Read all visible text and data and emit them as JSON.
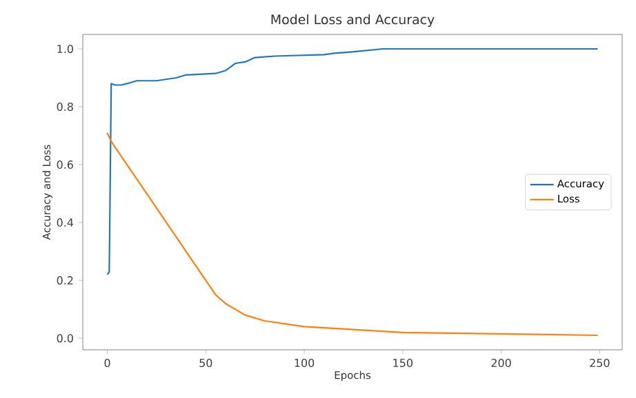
{
  "chart_data": {
    "type": "line",
    "title": "Model Loss and Accuracy",
    "xlabel": "Epochs",
    "ylabel": "Accuracy and Loss",
    "xlim": [
      -12.45,
      261.45
    ],
    "ylim": [
      -0.04,
      1.05
    ],
    "xticks": [
      0,
      50,
      100,
      150,
      200,
      250
    ],
    "yticks": [
      {
        "value": 0,
        "label": "0.0"
      },
      {
        "value": 0.2,
        "label": "0.2"
      },
      {
        "value": 0.4,
        "label": "0.4"
      },
      {
        "value": 0.6,
        "label": "0.6"
      },
      {
        "value": 0.8,
        "label": "0.8"
      },
      {
        "value": 1.0,
        "label": "1.0"
      }
    ],
    "legend": "right",
    "grid": false,
    "marker": "none",
    "line_style": "solid",
    "series": [
      {
        "name": "Accuracy",
        "color": "#1f77b4",
        "x": [
          0,
          1,
          2,
          4,
          7,
          10,
          15,
          25,
          35,
          40,
          55,
          60,
          65,
          70,
          75,
          85,
          110,
          115,
          125,
          140,
          249
        ],
        "values": [
          0.22,
          0.23,
          0.88,
          0.875,
          0.875,
          0.88,
          0.89,
          0.89,
          0.9,
          0.91,
          0.915,
          0.925,
          0.95,
          0.955,
          0.97,
          0.975,
          0.98,
          0.985,
          0.99,
          1.0,
          1.0
        ]
      },
      {
        "name": "Loss",
        "color": "#ff7f0e",
        "x": [
          0,
          2,
          10,
          20,
          30,
          40,
          50,
          55,
          60,
          70,
          80,
          100,
          125,
          150,
          200,
          249
        ],
        "values": [
          0.71,
          0.68,
          0.6,
          0.5,
          0.4,
          0.3,
          0.2,
          0.15,
          0.12,
          0.08,
          0.06,
          0.04,
          0.03,
          0.02,
          0.015,
          0.01
        ]
      }
    ]
  }
}
